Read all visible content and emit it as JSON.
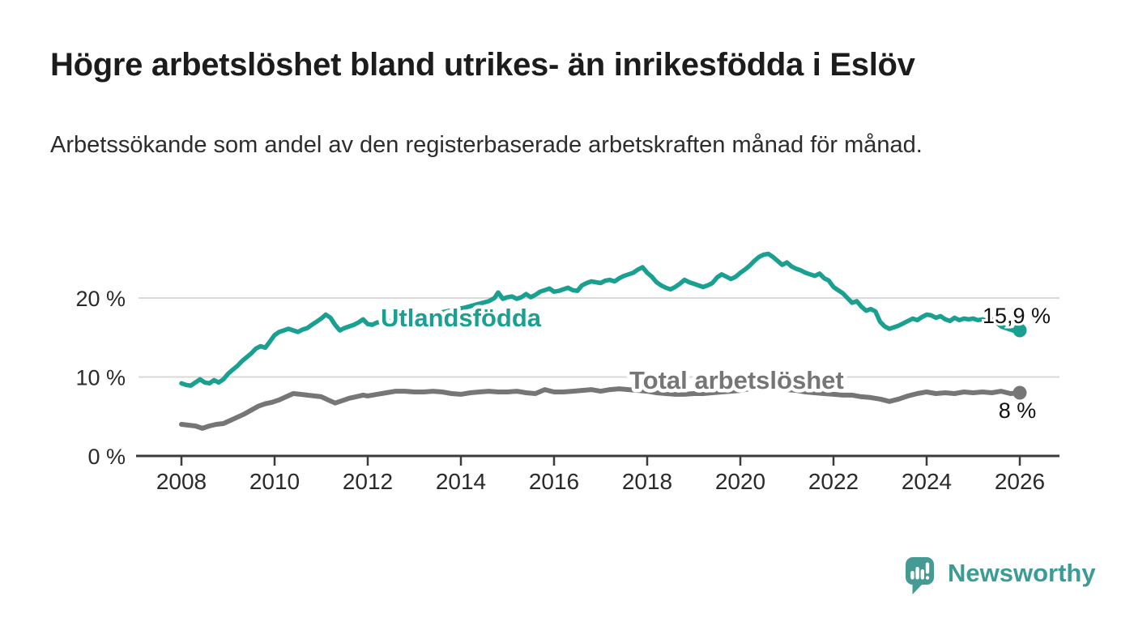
{
  "chart_data": {
    "type": "line",
    "title": "Högre arbetslöshet bland utrikes- än inrikesfödda i Eslöv",
    "subtitle": "Arbetssökande som andel av den registerbaserade arbetskraften månad för månad.",
    "unit": "%",
    "grid": true,
    "legend_position": "inline-labels",
    "xlim": [
      2007.1,
      2026.9
    ],
    "ylim": [
      0,
      27
    ],
    "x_ticks": [
      {
        "label": "2008",
        "value": 2008
      },
      {
        "label": "2010",
        "value": 2010
      },
      {
        "label": "2012",
        "value": 2012
      },
      {
        "label": "2014",
        "value": 2014
      },
      {
        "label": "2016",
        "value": 2016
      },
      {
        "label": "2018",
        "value": 2018
      },
      {
        "label": "2020",
        "value": 2020
      },
      {
        "label": "2022",
        "value": 2022
      },
      {
        "label": "2024",
        "value": 2024
      },
      {
        "label": "2026",
        "value": 2026
      }
    ],
    "y_ticks": [
      {
        "label": "0 %",
        "value": 0
      },
      {
        "label": "10 %",
        "value": 10
      },
      {
        "label": "20 %",
        "value": 20
      }
    ],
    "series": [
      {
        "name": "Utlandsfödda",
        "color": "#1aa091",
        "end_label": "15,9 %",
        "end_value": 15.9,
        "points": [
          [
            2008.0,
            9.2
          ],
          [
            2008.1,
            9.0
          ],
          [
            2008.2,
            8.9
          ],
          [
            2008.3,
            9.3
          ],
          [
            2008.4,
            9.7
          ],
          [
            2008.5,
            9.3
          ],
          [
            2008.6,
            9.2
          ],
          [
            2008.7,
            9.6
          ],
          [
            2008.8,
            9.3
          ],
          [
            2008.9,
            9.7
          ],
          [
            2009.0,
            10.4
          ],
          [
            2009.1,
            10.9
          ],
          [
            2009.2,
            11.4
          ],
          [
            2009.3,
            12.0
          ],
          [
            2009.4,
            12.5
          ],
          [
            2009.5,
            13.0
          ],
          [
            2009.6,
            13.6
          ],
          [
            2009.7,
            13.9
          ],
          [
            2009.8,
            13.7
          ],
          [
            2009.9,
            14.5
          ],
          [
            2010.0,
            15.3
          ],
          [
            2010.1,
            15.7
          ],
          [
            2010.2,
            15.9
          ],
          [
            2010.3,
            16.1
          ],
          [
            2010.4,
            15.9
          ],
          [
            2010.5,
            15.7
          ],
          [
            2010.6,
            16.0
          ],
          [
            2010.7,
            16.2
          ],
          [
            2010.8,
            16.6
          ],
          [
            2010.9,
            17.0
          ],
          [
            2011.0,
            17.4
          ],
          [
            2011.1,
            17.9
          ],
          [
            2011.2,
            17.5
          ],
          [
            2011.3,
            16.6
          ],
          [
            2011.4,
            15.9
          ],
          [
            2011.5,
            16.2
          ],
          [
            2011.6,
            16.4
          ],
          [
            2011.7,
            16.6
          ],
          [
            2011.8,
            16.9
          ],
          [
            2011.9,
            17.3
          ],
          [
            2012.0,
            16.7
          ],
          [
            2012.1,
            16.6
          ],
          [
            2012.2,
            16.9
          ],
          [
            2012.35,
            17.0
          ],
          [
            2012.6,
            17.2
          ],
          [
            2012.85,
            17.5
          ],
          [
            2013.1,
            17.7
          ],
          [
            2013.35,
            17.9
          ],
          [
            2013.6,
            18.2
          ],
          [
            2013.85,
            18.5
          ],
          [
            2014.1,
            18.8
          ],
          [
            2014.35,
            19.2
          ],
          [
            2014.6,
            19.6
          ],
          [
            2014.72,
            20.0
          ],
          [
            2014.8,
            20.7
          ],
          [
            2014.9,
            19.9
          ],
          [
            2015.0,
            20.1
          ],
          [
            2015.1,
            20.2
          ],
          [
            2015.2,
            19.9
          ],
          [
            2015.3,
            20.1
          ],
          [
            2015.4,
            20.5
          ],
          [
            2015.5,
            20.1
          ],
          [
            2015.6,
            20.4
          ],
          [
            2015.7,
            20.8
          ],
          [
            2015.8,
            21.0
          ],
          [
            2015.9,
            21.2
          ],
          [
            2016.0,
            20.8
          ],
          [
            2016.1,
            20.9
          ],
          [
            2016.2,
            21.1
          ],
          [
            2016.3,
            21.3
          ],
          [
            2016.4,
            21.0
          ],
          [
            2016.5,
            20.9
          ],
          [
            2016.6,
            21.6
          ],
          [
            2016.7,
            21.9
          ],
          [
            2016.8,
            22.1
          ],
          [
            2016.9,
            22.0
          ],
          [
            2017.0,
            21.9
          ],
          [
            2017.1,
            22.2
          ],
          [
            2017.2,
            22.3
          ],
          [
            2017.3,
            22.1
          ],
          [
            2017.4,
            22.5
          ],
          [
            2017.5,
            22.8
          ],
          [
            2017.6,
            23.0
          ],
          [
            2017.7,
            23.2
          ],
          [
            2017.8,
            23.6
          ],
          [
            2017.9,
            23.9
          ],
          [
            2018.0,
            23.2
          ],
          [
            2018.1,
            22.7
          ],
          [
            2018.2,
            22.0
          ],
          [
            2018.3,
            21.6
          ],
          [
            2018.4,
            21.3
          ],
          [
            2018.5,
            21.1
          ],
          [
            2018.6,
            21.4
          ],
          [
            2018.7,
            21.8
          ],
          [
            2018.8,
            22.3
          ],
          [
            2018.9,
            22.0
          ],
          [
            2019.0,
            21.8
          ],
          [
            2019.1,
            21.6
          ],
          [
            2019.2,
            21.4
          ],
          [
            2019.3,
            21.6
          ],
          [
            2019.4,
            21.9
          ],
          [
            2019.5,
            22.6
          ],
          [
            2019.6,
            23.0
          ],
          [
            2019.7,
            22.7
          ],
          [
            2019.8,
            22.4
          ],
          [
            2019.9,
            22.7
          ],
          [
            2020.0,
            23.2
          ],
          [
            2020.1,
            23.6
          ],
          [
            2020.2,
            24.1
          ],
          [
            2020.3,
            24.7
          ],
          [
            2020.4,
            25.2
          ],
          [
            2020.5,
            25.5
          ],
          [
            2020.6,
            25.6
          ],
          [
            2020.7,
            25.2
          ],
          [
            2020.8,
            24.7
          ],
          [
            2020.9,
            24.2
          ],
          [
            2021.0,
            24.5
          ],
          [
            2021.1,
            24.0
          ],
          [
            2021.2,
            23.7
          ],
          [
            2021.3,
            23.5
          ],
          [
            2021.4,
            23.2
          ],
          [
            2021.5,
            23.0
          ],
          [
            2021.6,
            22.8
          ],
          [
            2021.7,
            23.1
          ],
          [
            2021.8,
            22.5
          ],
          [
            2021.9,
            22.2
          ],
          [
            2022.0,
            21.4
          ],
          [
            2022.1,
            21.0
          ],
          [
            2022.2,
            20.6
          ],
          [
            2022.3,
            20.0
          ],
          [
            2022.4,
            19.4
          ],
          [
            2022.5,
            19.6
          ],
          [
            2022.6,
            18.9
          ],
          [
            2022.7,
            18.4
          ],
          [
            2022.8,
            18.6
          ],
          [
            2022.9,
            18.3
          ],
          [
            2023.0,
            17.0
          ],
          [
            2023.1,
            16.4
          ],
          [
            2023.2,
            16.1
          ],
          [
            2023.3,
            16.3
          ],
          [
            2023.4,
            16.5
          ],
          [
            2023.5,
            16.8
          ],
          [
            2023.6,
            17.1
          ],
          [
            2023.7,
            17.4
          ],
          [
            2023.8,
            17.2
          ],
          [
            2023.9,
            17.6
          ],
          [
            2024.0,
            17.9
          ],
          [
            2024.1,
            17.8
          ],
          [
            2024.2,
            17.5
          ],
          [
            2024.3,
            17.7
          ],
          [
            2024.4,
            17.3
          ],
          [
            2024.5,
            17.1
          ],
          [
            2024.6,
            17.5
          ],
          [
            2024.7,
            17.2
          ],
          [
            2024.8,
            17.4
          ],
          [
            2024.9,
            17.3
          ],
          [
            2025.0,
            17.4
          ],
          [
            2025.1,
            17.2
          ],
          [
            2025.2,
            17.3
          ],
          [
            2025.3,
            17.1
          ],
          [
            2025.4,
            17.3
          ],
          [
            2025.5,
            16.9
          ],
          [
            2025.6,
            16.4
          ],
          [
            2025.7,
            16.2
          ],
          [
            2025.8,
            16.0
          ],
          [
            2025.9,
            15.8
          ],
          [
            2026.0,
            15.9
          ]
        ]
      },
      {
        "name": "Total arbetslöshet",
        "color": "#767676",
        "end_label": "8 %",
        "end_value": 8.0,
        "points": [
          [
            2008.0,
            4.0
          ],
          [
            2008.15,
            3.9
          ],
          [
            2008.3,
            3.8
          ],
          [
            2008.45,
            3.5
          ],
          [
            2008.6,
            3.8
          ],
          [
            2008.75,
            4.0
          ],
          [
            2008.9,
            4.1
          ],
          [
            2009.05,
            4.5
          ],
          [
            2009.2,
            4.9
          ],
          [
            2009.35,
            5.3
          ],
          [
            2009.5,
            5.8
          ],
          [
            2009.65,
            6.3
          ],
          [
            2009.8,
            6.6
          ],
          [
            2009.95,
            6.8
          ],
          [
            2010.1,
            7.1
          ],
          [
            2010.25,
            7.5
          ],
          [
            2010.4,
            7.9
          ],
          [
            2010.55,
            7.8
          ],
          [
            2010.7,
            7.7
          ],
          [
            2010.85,
            7.6
          ],
          [
            2011.0,
            7.5
          ],
          [
            2011.15,
            7.1
          ],
          [
            2011.3,
            6.7
          ],
          [
            2011.45,
            7.0
          ],
          [
            2011.6,
            7.3
          ],
          [
            2011.75,
            7.5
          ],
          [
            2011.9,
            7.7
          ],
          [
            2012.0,
            7.6
          ],
          [
            2012.2,
            7.8
          ],
          [
            2012.4,
            8.0
          ],
          [
            2012.6,
            8.2
          ],
          [
            2012.8,
            8.2
          ],
          [
            2013.0,
            8.1
          ],
          [
            2013.2,
            8.1
          ],
          [
            2013.4,
            8.2
          ],
          [
            2013.6,
            8.1
          ],
          [
            2013.8,
            7.9
          ],
          [
            2014.0,
            7.8
          ],
          [
            2014.2,
            8.0
          ],
          [
            2014.4,
            8.1
          ],
          [
            2014.6,
            8.2
          ],
          [
            2014.8,
            8.1
          ],
          [
            2015.0,
            8.1
          ],
          [
            2015.2,
            8.2
          ],
          [
            2015.4,
            8.0
          ],
          [
            2015.6,
            7.9
          ],
          [
            2015.8,
            8.4
          ],
          [
            2016.0,
            8.1
          ],
          [
            2016.2,
            8.1
          ],
          [
            2016.4,
            8.2
          ],
          [
            2016.6,
            8.3
          ],
          [
            2016.8,
            8.4
          ],
          [
            2017.0,
            8.2
          ],
          [
            2017.2,
            8.4
          ],
          [
            2017.4,
            8.5
          ],
          [
            2017.6,
            8.4
          ],
          [
            2017.8,
            8.3
          ],
          [
            2018.0,
            8.2
          ],
          [
            2018.2,
            8.0
          ],
          [
            2018.4,
            7.9
          ],
          [
            2018.6,
            7.8
          ],
          [
            2018.8,
            7.8
          ],
          [
            2019.0,
            7.9
          ],
          [
            2019.2,
            7.9
          ],
          [
            2019.4,
            8.0
          ],
          [
            2019.6,
            8.1
          ],
          [
            2019.8,
            8.2
          ],
          [
            2020.0,
            8.3
          ],
          [
            2020.2,
            8.5
          ],
          [
            2020.4,
            8.6
          ],
          [
            2020.6,
            8.7
          ],
          [
            2020.8,
            8.6
          ],
          [
            2021.0,
            8.4
          ],
          [
            2021.2,
            8.3
          ],
          [
            2021.4,
            8.1
          ],
          [
            2021.6,
            8.0
          ],
          [
            2021.8,
            7.9
          ],
          [
            2022.0,
            7.8
          ],
          [
            2022.2,
            7.7
          ],
          [
            2022.4,
            7.7
          ],
          [
            2022.6,
            7.5
          ],
          [
            2022.8,
            7.4
          ],
          [
            2023.0,
            7.2
          ],
          [
            2023.2,
            6.9
          ],
          [
            2023.4,
            7.2
          ],
          [
            2023.6,
            7.6
          ],
          [
            2023.8,
            7.9
          ],
          [
            2024.0,
            8.1
          ],
          [
            2024.2,
            7.9
          ],
          [
            2024.4,
            8.0
          ],
          [
            2024.6,
            7.9
          ],
          [
            2024.8,
            8.1
          ],
          [
            2025.0,
            8.0
          ],
          [
            2025.2,
            8.1
          ],
          [
            2025.4,
            8.0
          ],
          [
            2025.6,
            8.2
          ],
          [
            2025.8,
            7.9
          ],
          [
            2026.0,
            8.0
          ]
        ]
      }
    ]
  },
  "branding": {
    "logo_text": "Newsworthy",
    "logo_icon": "newsworthy-speech-bubble-bar-chart-icon",
    "brand_color": "#3c9c95"
  }
}
